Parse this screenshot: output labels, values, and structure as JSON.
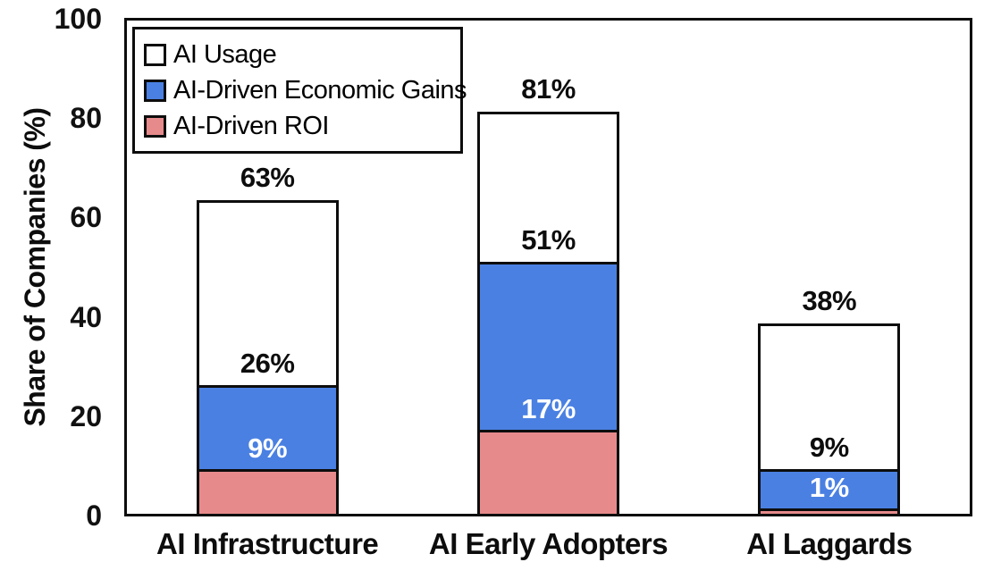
{
  "chart_data": {
    "type": "bar",
    "subtype": "overlay-stacked-columns",
    "title": "",
    "categories": [
      "AI Infrastructure",
      "AI Early Adopters",
      "AI Laggards"
    ],
    "series": [
      {
        "name": "AI Usage",
        "values": [
          63,
          81,
          38
        ],
        "color": "#ffffff",
        "label_color": "#0d0d0d"
      },
      {
        "name": "AI-Driven Economic Gains",
        "values": [
          26,
          51,
          9
        ],
        "color": "#4a80e2",
        "label_color": "#0d0d0d"
      },
      {
        "name": "AI-Driven ROI",
        "values": [
          9,
          17,
          1
        ],
        "color": "#e78a8b",
        "label_color": "#ffffff"
      }
    ],
    "value_label_suffix": "%",
    "xlabel": "",
    "ylabel": "Share of Companies (%)",
    "ylim": [
      0,
      100
    ],
    "yticks": [
      0,
      20,
      40,
      60,
      80,
      100
    ],
    "grid": false,
    "legend_position": "top-left",
    "axis_color": "#0d0d0d",
    "background_color": "#ffffff"
  }
}
